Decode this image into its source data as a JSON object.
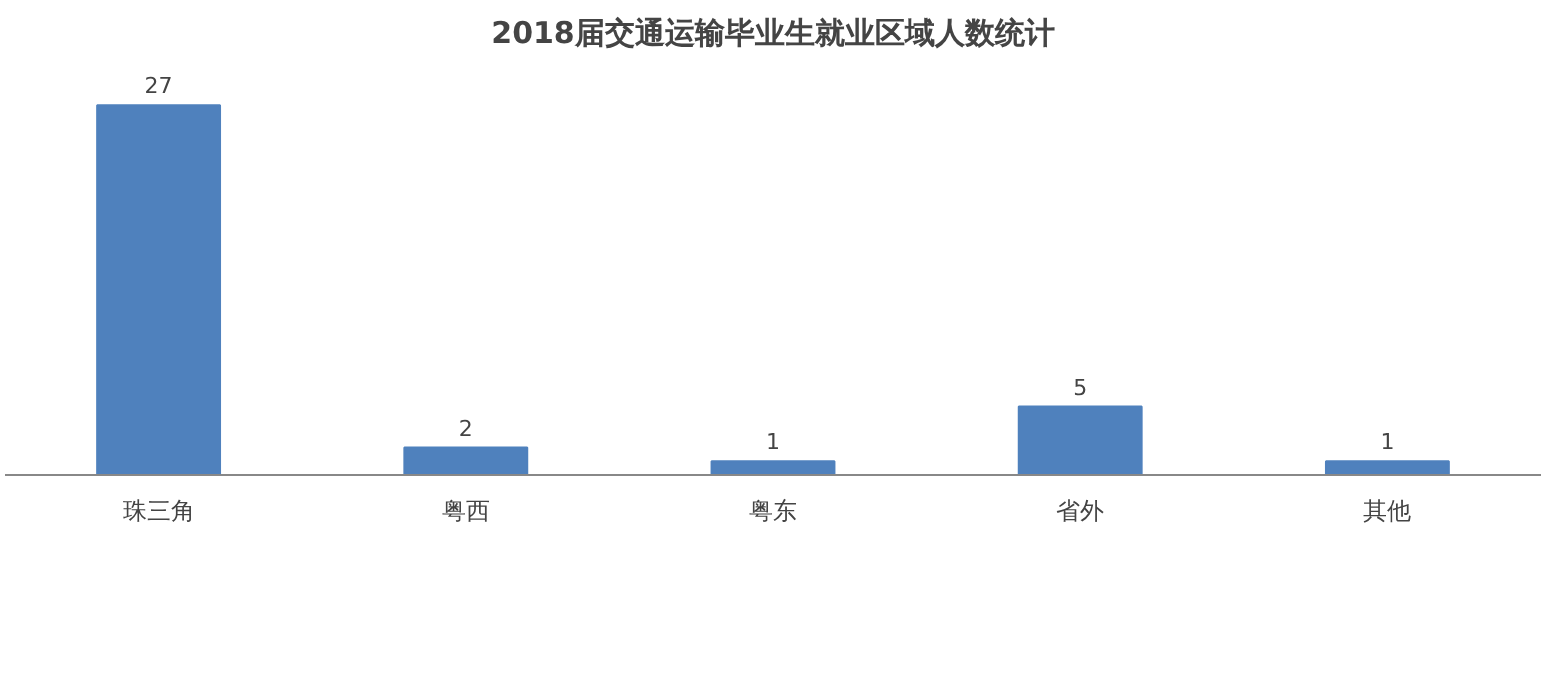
{
  "chart_data": {
    "type": "bar",
    "title": "2018届交通运输毕业生就业区域人数统计",
    "categories": [
      "珠三角",
      "粤西",
      "粤东",
      "省外",
      "其他"
    ],
    "values": [
      27,
      2,
      1,
      5,
      1
    ],
    "color": "#4f81bd",
    "data_labels": true
  }
}
